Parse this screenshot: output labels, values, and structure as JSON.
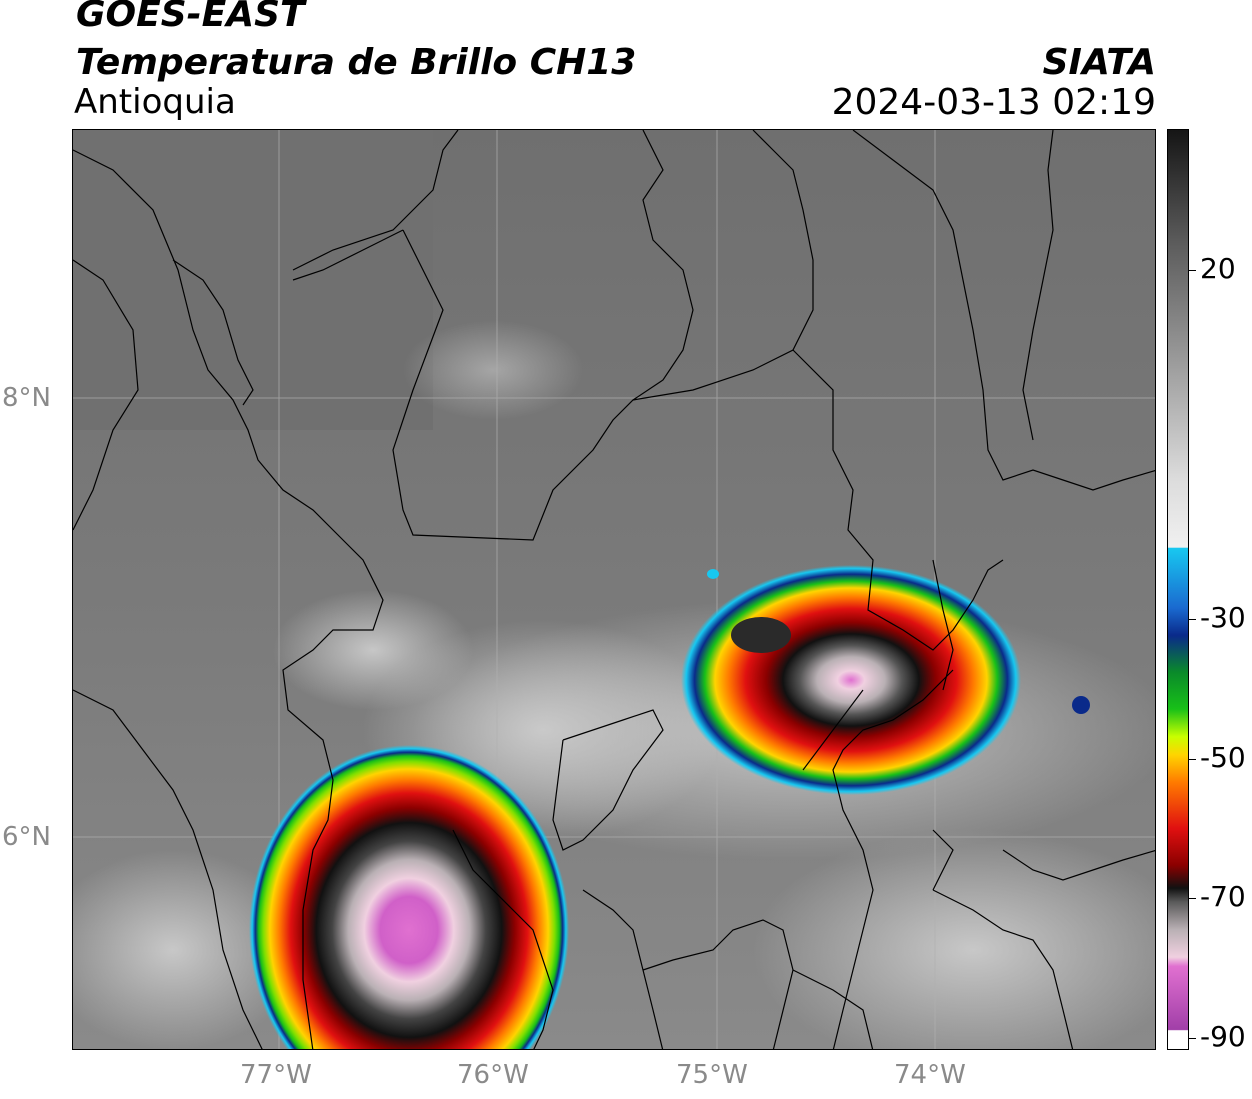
{
  "header": {
    "satellite": "GOES-EAST",
    "product": "Temperatura de Brillo CH13",
    "region": "Antioquia",
    "agency": "SIATA",
    "datetime": "2024-03-13 02:19"
  },
  "map": {
    "lat_labels": [
      "8°N",
      "6°N"
    ],
    "lon_labels": [
      "77°W",
      "76°W",
      "75°W",
      "74°W"
    ],
    "colors": {
      "background": "#7a7a7a",
      "graticule": "#b0b0b0",
      "boundaries": "#000000"
    }
  },
  "colorbar": {
    "tick_labels": [
      "20",
      "-30",
      "-50",
      "-70",
      "-90"
    ],
    "palette": [
      "#ffffff",
      "#a13fa8",
      "#e070d0",
      "#f0d0e0",
      "#b9b0b4",
      "#5a5a5a",
      "#111111",
      "#8b0000",
      "#e01010",
      "#ff7a00",
      "#ffd400",
      "#c8ff00",
      "#18c018",
      "#0a8a2a",
      "#0a2a8a",
      "#1a6ad0",
      "#18c8f0",
      "#f0f0f0",
      "#9a9a9a",
      "#5a5a5a",
      "#151515"
    ]
  }
}
